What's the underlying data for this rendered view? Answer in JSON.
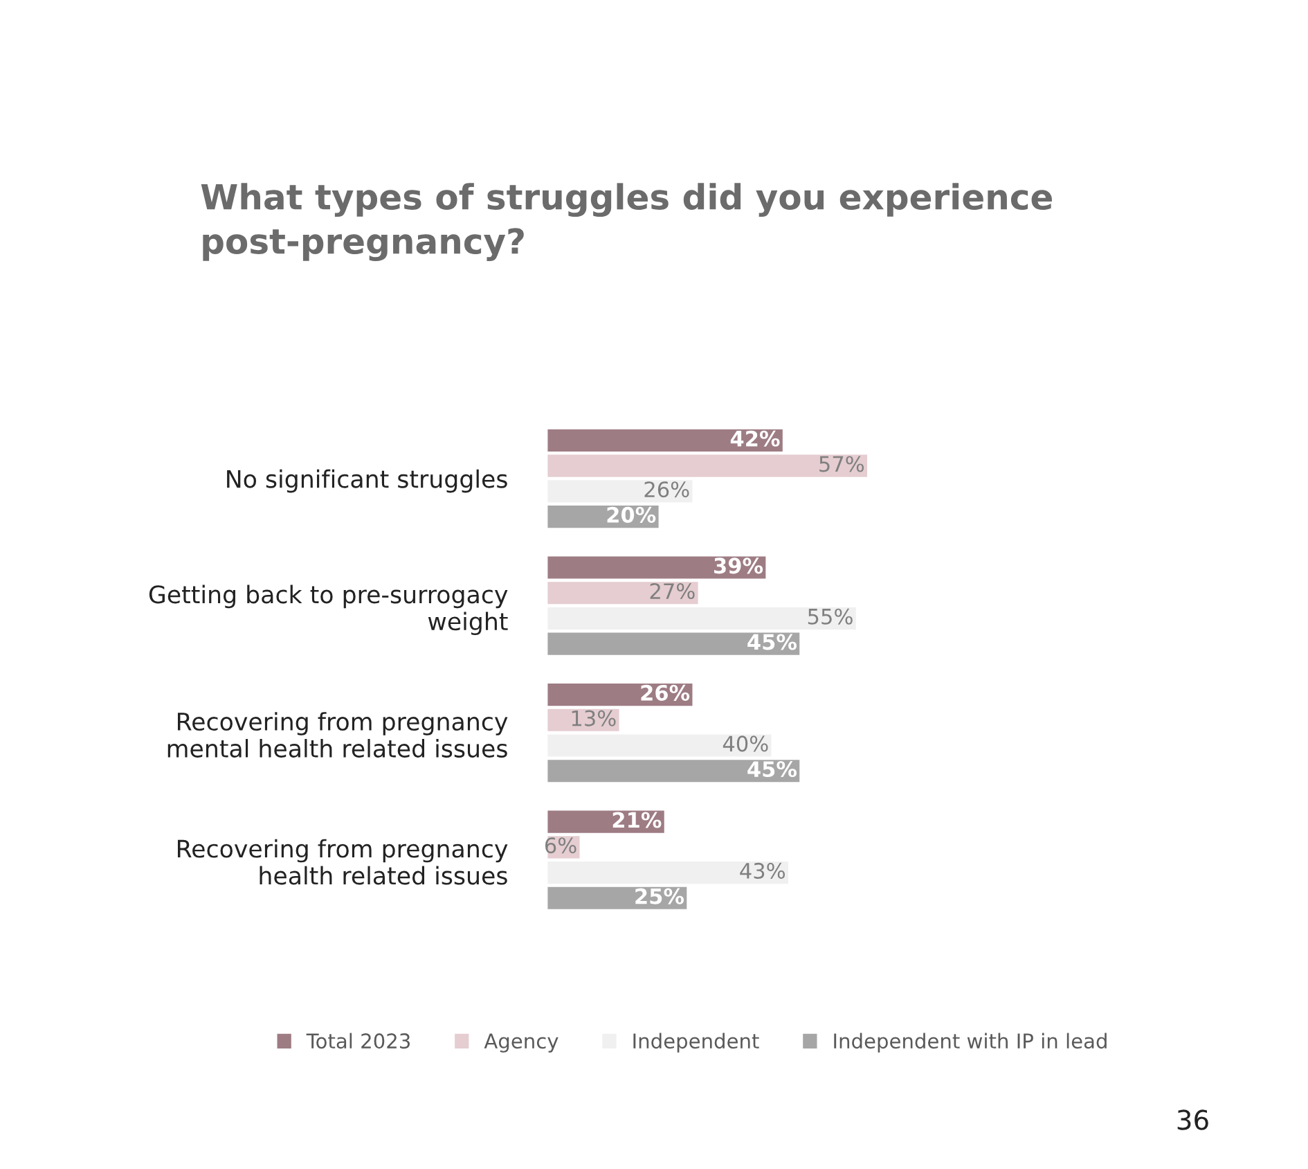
{
  "chart_data": {
    "type": "bar",
    "orientation": "horizontal",
    "title": "What types of struggles did you experience post-pregnancy?",
    "categories": [
      "No significant struggles",
      "Getting back to pre-surrogacy weight",
      "Recovering from pregnancy mental health related issues",
      "Recovering from pregnancy health related issues"
    ],
    "series": [
      {
        "name": "Total 2023",
        "color": "#9e7c84",
        "values": [
          42,
          39,
          26,
          21
        ],
        "value_labels": [
          "42%",
          "39%",
          "26%",
          "21%"
        ]
      },
      {
        "name": "Agency",
        "color": "#e5cdd1",
        "values": [
          57,
          27,
          13,
          6
        ],
        "value_labels": [
          "57%",
          "27%",
          "13%",
          "6%"
        ]
      },
      {
        "name": "Independent",
        "color": "#f0f0f0",
        "values": [
          26,
          55,
          40,
          43
        ],
        "value_labels": [
          "26%",
          "55%",
          "40%",
          "43%"
        ]
      },
      {
        "name": "Independent with IP in lead",
        "color": "#a6a6a6",
        "values": [
          20,
          45,
          45,
          25
        ],
        "value_labels": [
          "20%",
          "45%",
          "45%",
          "25%"
        ]
      }
    ],
    "legend": "bottom",
    "grid": false,
    "annotations": [
      "36"
    ]
  }
}
